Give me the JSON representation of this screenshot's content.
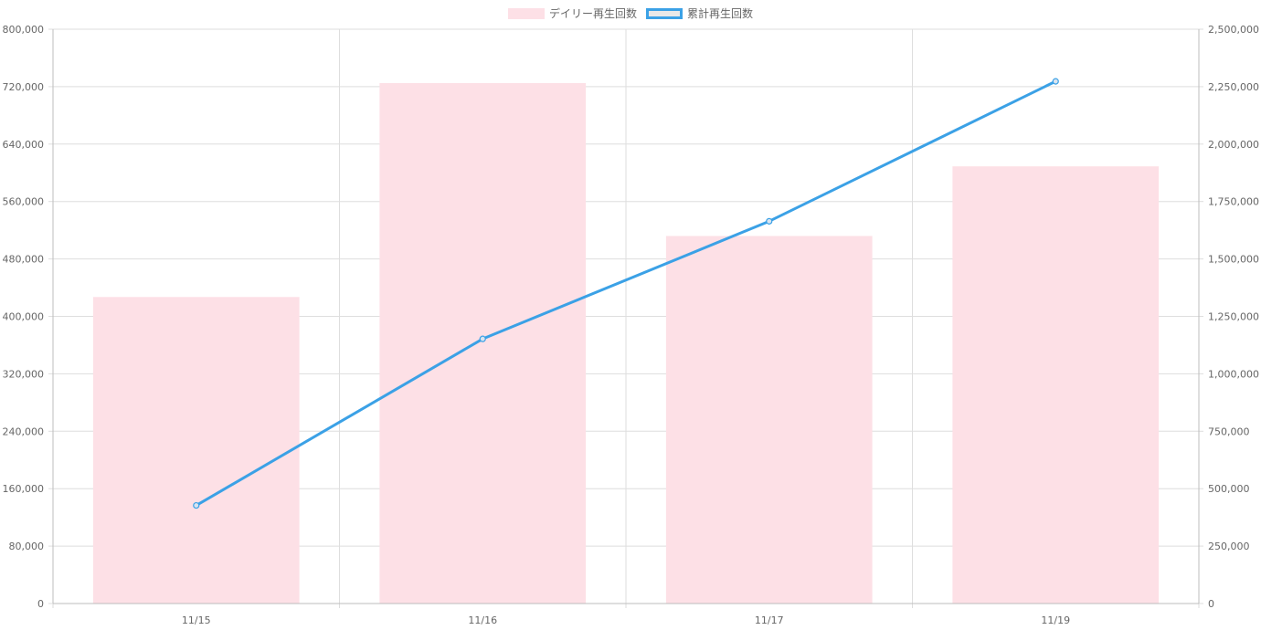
{
  "chart_data": {
    "type": "bar",
    "categories": [
      "11/15",
      "11/16",
      "11/17",
      "11/19"
    ],
    "series": [
      {
        "name": "デイリー再生回数",
        "type": "bar",
        "axis": "left",
        "color": "#fde0e6",
        "values": [
          427000,
          725000,
          512000,
          609000
        ]
      },
      {
        "name": "累計再生回数",
        "type": "line",
        "axis": "right",
        "color": "#3ba1e6",
        "fill": "#e8e8e8",
        "values": [
          427000,
          1152000,
          1664000,
          2273000
        ]
      }
    ],
    "y_left": {
      "min": 0,
      "max": 800000,
      "ticks": [
        "0",
        "80,000",
        "160,000",
        "240,000",
        "320,000",
        "400,000",
        "480,000",
        "560,000",
        "640,000",
        "720,000",
        "800,000"
      ]
    },
    "y_right": {
      "min": 0,
      "max": 2500000,
      "ticks": [
        "0",
        "250,000",
        "500,000",
        "750,000",
        "1,000,000",
        "1,250,000",
        "1,500,000",
        "1,750,000",
        "2,000,000",
        "2,250,000",
        "2,500,000"
      ]
    },
    "grid": true,
    "legend_position": "top-center",
    "colors": {
      "grid": "#dedede",
      "axis": "#bdbdbd",
      "tick_text": "#666666"
    }
  }
}
